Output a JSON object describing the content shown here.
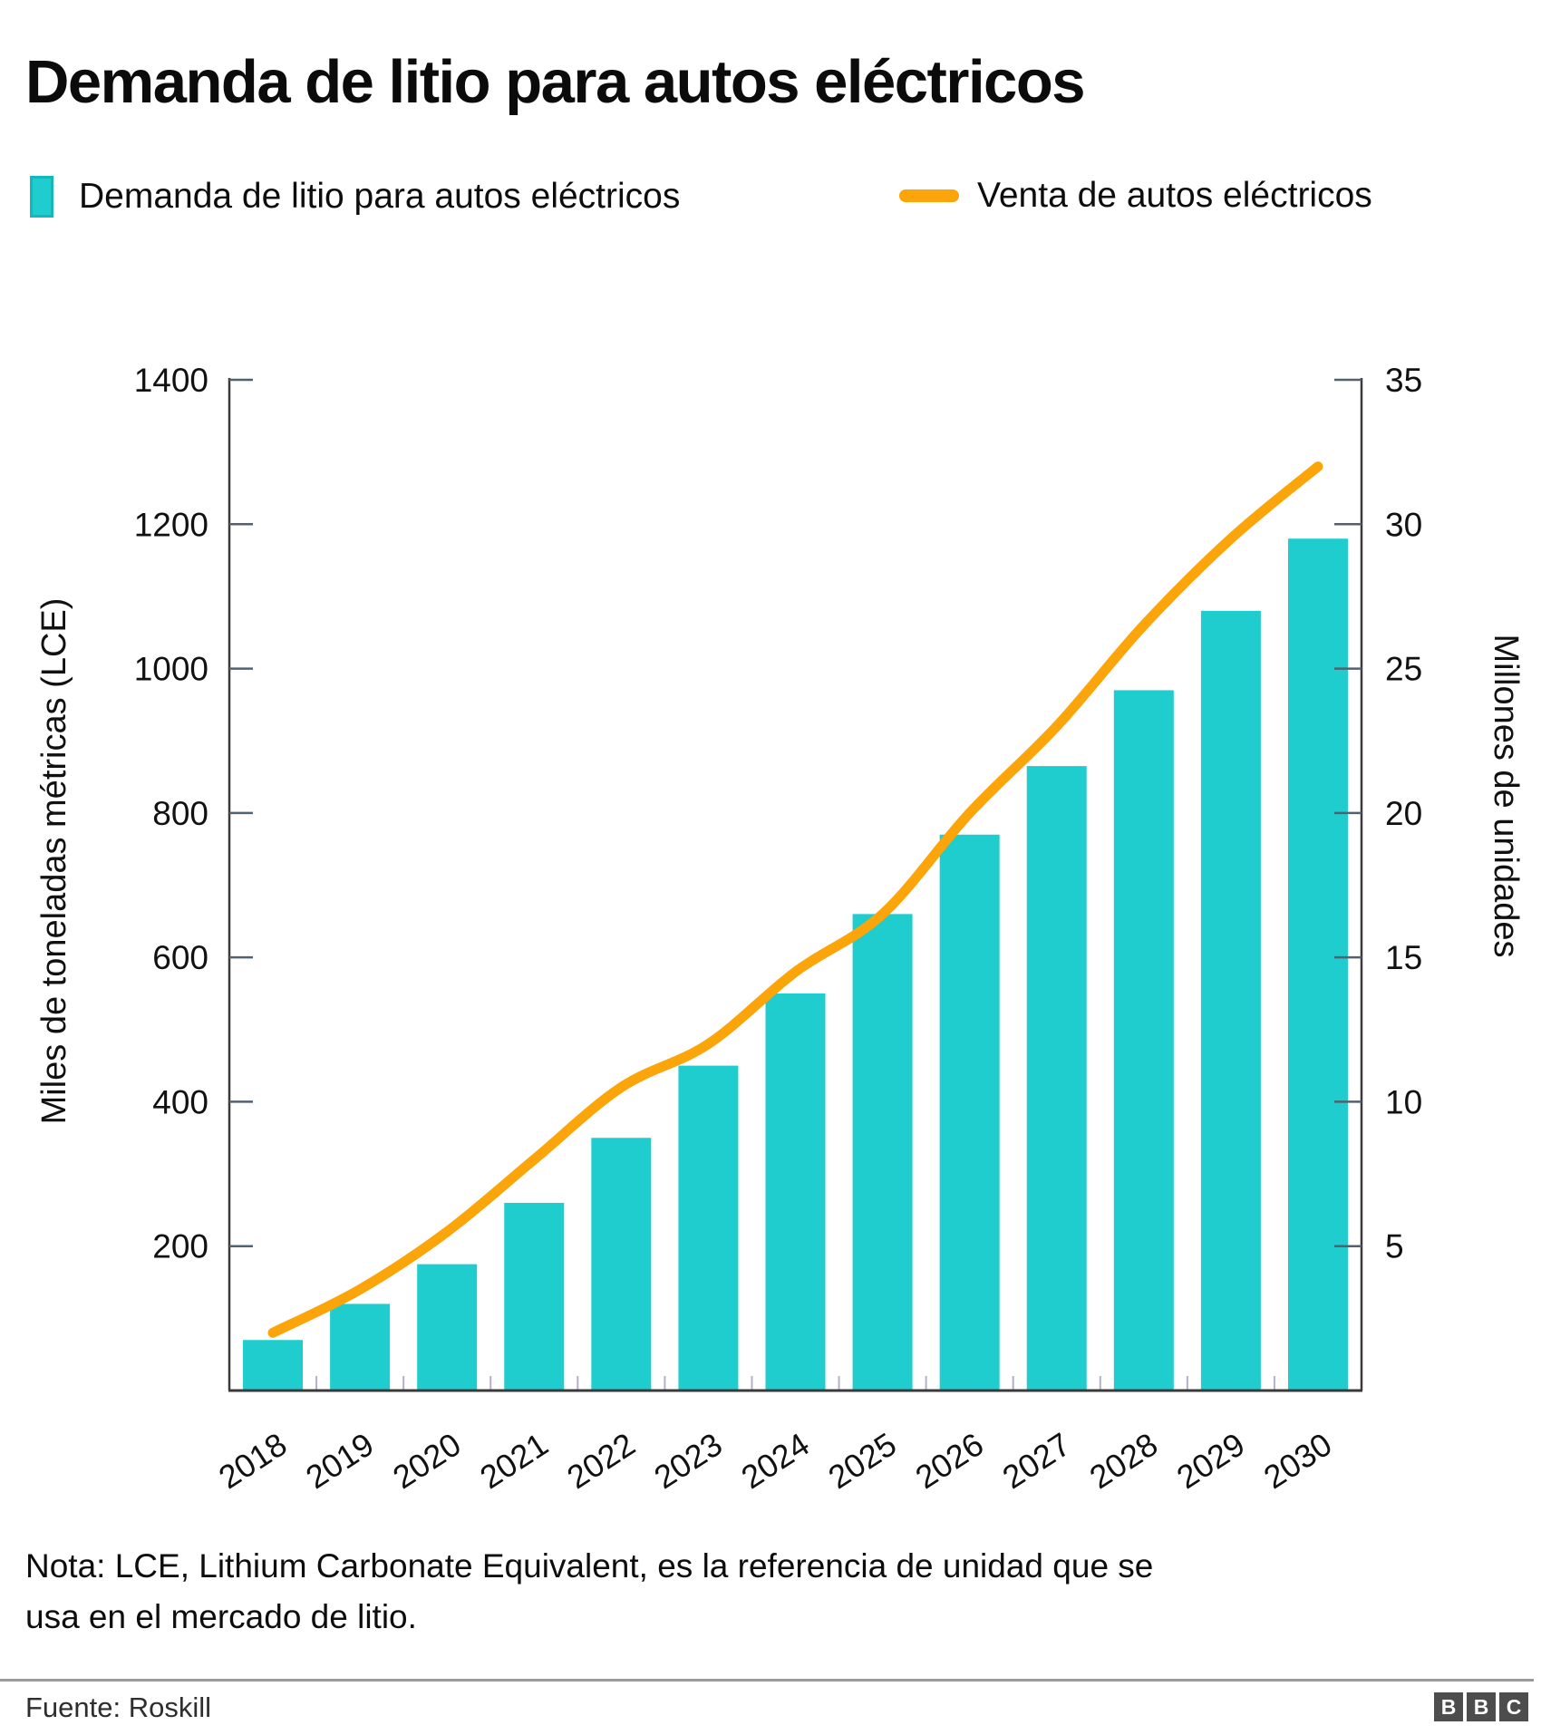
{
  "title": "Demanda de litio para autos eléctricos",
  "legend": {
    "bar_label": "Demanda de litio para autos eléctricos",
    "line_label": "Venta de autos eléctricos"
  },
  "note": {
    "lines": [
      "Nota: LCE, Lithium Carbonate Equivalent, es la referencia de unidad que se",
      "usa en el mercado de litio."
    ]
  },
  "footer": {
    "source": "Fuente: Roskill",
    "logo_letters": [
      "B",
      "B",
      "C"
    ]
  },
  "colors": {
    "bar": "#1FCDCE",
    "bar_edge": "#14b7bc",
    "line": "#FCA50A",
    "axis": "#3a3a3a",
    "tick": "#52606f",
    "minor_tick": "#b7aecd",
    "text": "#111111"
  },
  "chart_data": {
    "type": "combo",
    "categories": [
      "2018",
      "2019",
      "2020",
      "2021",
      "2022",
      "2023",
      "2024",
      "2025",
      "2026",
      "2027",
      "2028",
      "2029",
      "2030"
    ],
    "series": [
      {
        "name": "Demanda de litio para autos eléctricos",
        "type": "bar",
        "axis": "left",
        "color": "#1FCDCE",
        "values": [
          70,
          120,
          175,
          260,
          350,
          450,
          550,
          660,
          770,
          865,
          970,
          1080,
          1180
        ]
      },
      {
        "name": "Venta de autos eléctricos",
        "type": "line",
        "axis": "right",
        "color": "#FCA50A",
        "values": [
          2,
          3.5,
          5.5,
          8,
          10.5,
          12,
          14.5,
          16.5,
          20,
          23,
          26.5,
          29.5,
          32
        ]
      }
    ],
    "left_axis": {
      "label": "Miles de toneladas métricas (LCE)",
      "ticks": [
        200,
        400,
        600,
        800,
        1000,
        1200,
        1400
      ],
      "range": [
        0,
        1400
      ]
    },
    "right_axis": {
      "label": "Millones de unidades",
      "ticks": [
        5,
        10,
        15,
        20,
        25,
        30,
        35
      ],
      "range": [
        0,
        35
      ]
    },
    "grid": false,
    "legend_position": "top"
  }
}
